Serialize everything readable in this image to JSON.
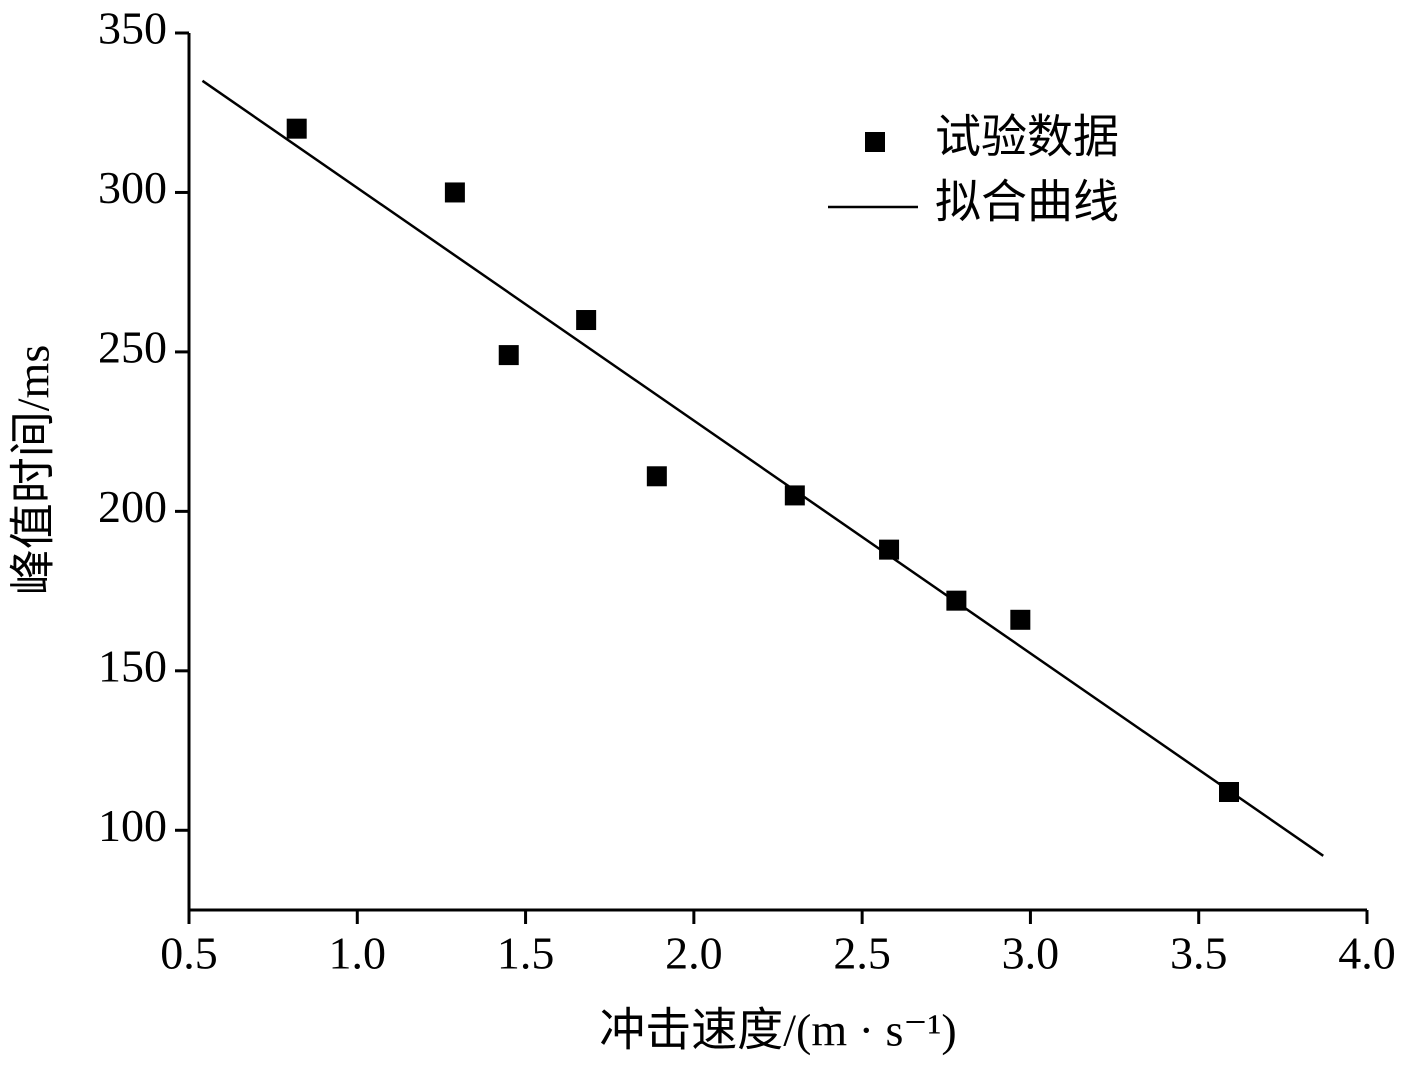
{
  "chart_data": {
    "type": "scatter",
    "x_label": "冲击速度/(m · s⁻¹)",
    "y_label": "峰值时间/ms",
    "xlim": [
      0.5,
      4.0
    ],
    "ylim": [
      75,
      350
    ],
    "xticks": [
      0.5,
      {
        "value": 1,
        "label": "1.0"
      },
      1.5,
      {
        "value": 2,
        "label": "2.0"
      },
      2.5,
      {
        "value": 3,
        "label": "3.0"
      },
      3.5,
      {
        "value": 4,
        "label": "4.0"
      }
    ],
    "yticks": [
      100,
      150,
      200,
      250,
      300,
      350
    ],
    "legend": "upper right",
    "series": [
      {
        "name": "试验数据",
        "kind": "marker",
        "marker": "square",
        "color": "#000000",
        "x": [
          0.82,
          1.29,
          1.45,
          1.68,
          1.89,
          2.3,
          2.58,
          2.78,
          2.97,
          3.59
        ],
        "values": [
          320,
          300,
          249,
          260,
          211,
          205,
          188,
          172,
          166,
          112
        ]
      },
      {
        "name": "拟合曲线",
        "kind": "line",
        "color": "#000000",
        "x": [
          0.54,
          3.87
        ],
        "values": [
          335,
          92
        ]
      }
    ]
  }
}
